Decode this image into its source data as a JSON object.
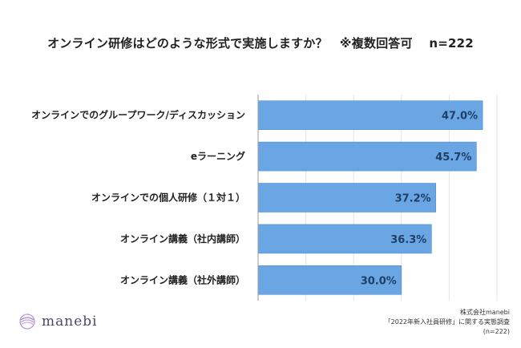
{
  "title": "オンライン研修はどのような形式で実施しますか？　※複数回答可　 n=222",
  "chart_data": {
    "type": "bar",
    "orientation": "horizontal",
    "categories": [
      "オンラインでのグループワーク/ディスカッション",
      "eラーニング",
      "オンラインでの個人研修（１対１）",
      "オンライン講義（社内講師）",
      "オンライン講義（社外講師）"
    ],
    "values": [
      47.0,
      45.7,
      37.2,
      36.3,
      30.0
    ],
    "value_labels": [
      "47.0%",
      "45.7%",
      "37.2%",
      "36.3%",
      "30.0%"
    ],
    "xlim": [
      0,
      50
    ],
    "grid": true,
    "bar_color": "#6aa6e3",
    "bar_edge_color": "#4f8fd6"
  },
  "logo": {
    "text": "manebi",
    "icon": "manebi-logo-icon",
    "color": "#a890c8"
  },
  "source": {
    "line1": "株式会社manebi",
    "line2": "「2022年新入社員研修」に関する実態調査",
    "line3": "(n=222)"
  }
}
